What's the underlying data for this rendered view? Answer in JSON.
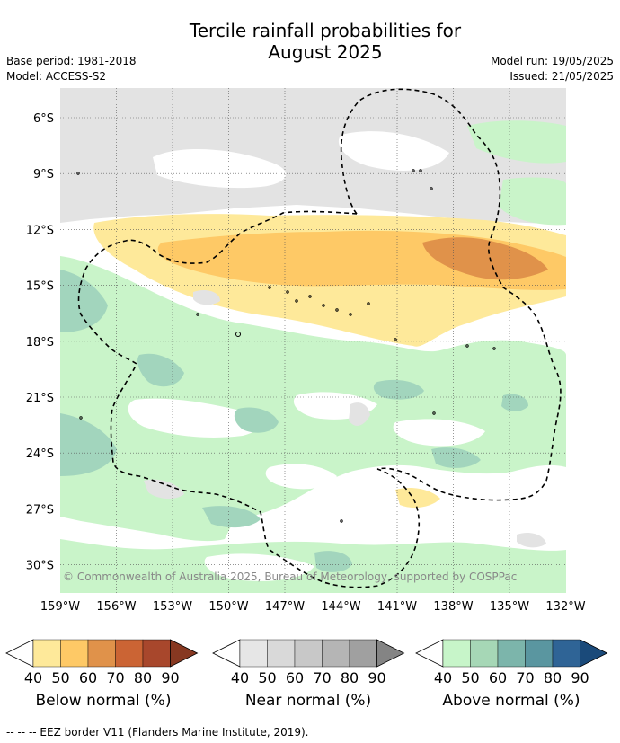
{
  "title_line1": "Tercile rainfall probabilities for",
  "title_line2": "August 2025",
  "base_period": "Base period: 1981-2018",
  "model": "Model: ACCESS-S2",
  "model_run": "Model run: 19/05/2025",
  "issued": "Issued: 21/05/2025",
  "copyright": "© Commonwealth of Australia 2025, Bureau of Meteorology, supported by COSPPac",
  "lat_labels": [
    "6°S",
    "9°S",
    "12°S",
    "15°S",
    "18°S",
    "21°S",
    "24°S",
    "27°S",
    "30°S"
  ],
  "lon_labels": [
    "159°W",
    "156°W",
    "153°W",
    "150°W",
    "147°W",
    "144°W",
    "141°W",
    "138°W",
    "135°W",
    "132°W"
  ],
  "colorbars": [
    {
      "label": "Below normal (%)",
      "ticks": [
        "40",
        "50",
        "60",
        "70",
        "80",
        "90"
      ],
      "colors": [
        "#ffffff",
        "#fee99a",
        "#fec966",
        "#e0924a",
        "#cb6434",
        "#a8472c",
        "#873821"
      ]
    },
    {
      "label": "Near normal (%)",
      "ticks": [
        "40",
        "50",
        "60",
        "70",
        "80",
        "90"
      ],
      "colors": [
        "#ffffff",
        "#e6e6e6",
        "#d9d9d9",
        "#c8c8c8",
        "#b5b5b5",
        "#a0a0a0",
        "#848484"
      ]
    },
    {
      "label": "Above normal (%)",
      "ticks": [
        "40",
        "50",
        "60",
        "70",
        "80",
        "90"
      ],
      "colors": [
        "#ffffff",
        "#c7f5c9",
        "#a6d7b6",
        "#7cb5ab",
        "#5a96a0",
        "#2f6496",
        "#1a4a7a"
      ]
    }
  ],
  "footnote": "--  --  -- EEZ border V11 (Flanders Marine Institute, 2019).",
  "map_colors": {
    "near_normal": "#e3e3e3",
    "above_normal_light": "#c9f4c9",
    "above_normal_mid": "#a2d5bd",
    "below_normal_light": "#fee99a",
    "below_normal_mid": "#fec966",
    "below_normal_dark": "#e0924a"
  }
}
